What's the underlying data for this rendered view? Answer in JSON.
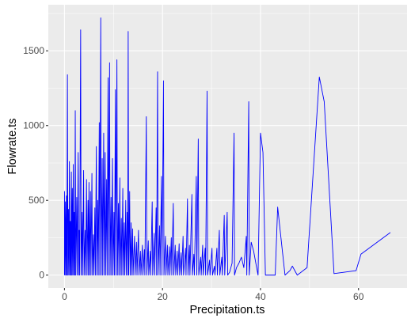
{
  "chart_data": {
    "type": "line",
    "xlabel": "Precipitation.ts",
    "ylabel": "Flowrate.ts",
    "xlim": [
      -3.3,
      69.9
    ],
    "ylim": [
      -86,
      1808
    ],
    "x_ticks": [
      0,
      20,
      40,
      60
    ],
    "y_ticks": [
      0,
      500,
      1000,
      1500
    ],
    "x_tick_labels": [
      "0",
      "20",
      "40",
      "60"
    ],
    "y_tick_labels": [
      "0",
      "500",
      "1000",
      "1500"
    ],
    "grid": true,
    "legend": "none",
    "colors": {
      "line": "#0000ff",
      "panel_background": "#ebebeb",
      "grid_major": "#ffffff",
      "tick_label": "#4d4d4d",
      "tick_mark": "#333333"
    },
    "series": [
      {
        "values": [
          [
            0.0,
            0
          ],
          [
            0.0,
            560
          ],
          [
            0.1,
            0
          ],
          [
            0.2,
            490
          ],
          [
            0.3,
            0
          ],
          [
            0.4,
            530
          ],
          [
            0.5,
            0
          ],
          [
            0.6,
            1340
          ],
          [
            0.7,
            0
          ],
          [
            0.8,
            440
          ],
          [
            0.9,
            0
          ],
          [
            1.0,
            760
          ],
          [
            1.1,
            0
          ],
          [
            1.2,
            360
          ],
          [
            1.3,
            0
          ],
          [
            1.4,
            690
          ],
          [
            1.5,
            0
          ],
          [
            1.6,
            580
          ],
          [
            1.7,
            0
          ],
          [
            1.8,
            740
          ],
          [
            1.9,
            0
          ],
          [
            2.0,
            420
          ],
          [
            2.1,
            0
          ],
          [
            2.2,
            1100
          ],
          [
            2.3,
            0
          ],
          [
            2.5,
            520
          ],
          [
            2.6,
            0
          ],
          [
            2.8,
            820
          ],
          [
            2.9,
            0
          ],
          [
            3.0,
            300
          ],
          [
            3.1,
            0
          ],
          [
            3.3,
            1640
          ],
          [
            3.4,
            0
          ],
          [
            3.6,
            420
          ],
          [
            3.7,
            0
          ],
          [
            3.9,
            700
          ],
          [
            4.0,
            0
          ],
          [
            4.2,
            300
          ],
          [
            4.3,
            0
          ],
          [
            4.5,
            640
          ],
          [
            4.6,
            0
          ],
          [
            4.8,
            500
          ],
          [
            4.9,
            0
          ],
          [
            5.0,
            620
          ],
          [
            5.1,
            0
          ],
          [
            5.3,
            560
          ],
          [
            5.4,
            0
          ],
          [
            5.6,
            680
          ],
          [
            5.7,
            0
          ],
          [
            5.9,
            270
          ],
          [
            6.0,
            0
          ],
          [
            6.2,
            450
          ],
          [
            6.3,
            0
          ],
          [
            6.5,
            860
          ],
          [
            6.6,
            0
          ],
          [
            6.8,
            500
          ],
          [
            6.9,
            0
          ],
          [
            7.1,
            1020
          ],
          [
            7.2,
            0
          ],
          [
            7.4,
            1720
          ],
          [
            7.5,
            0
          ],
          [
            7.7,
            780
          ],
          [
            7.8,
            0
          ],
          [
            8.0,
            950
          ],
          [
            8.1,
            0
          ],
          [
            8.3,
            820
          ],
          [
            8.4,
            0
          ],
          [
            8.6,
            640
          ],
          [
            8.7,
            0
          ],
          [
            8.9,
            1320
          ],
          [
            9.0,
            0
          ],
          [
            9.2,
            1420
          ],
          [
            9.3,
            0
          ],
          [
            9.5,
            520
          ],
          [
            9.6,
            0
          ],
          [
            9.8,
            780
          ],
          [
            9.9,
            0
          ],
          [
            10.1,
            420
          ],
          [
            10.2,
            0
          ],
          [
            10.4,
            1240
          ],
          [
            10.5,
            0
          ],
          [
            10.7,
            1440
          ],
          [
            10.8,
            0
          ],
          [
            11.0,
            480
          ],
          [
            11.1,
            0
          ],
          [
            11.3,
            650
          ],
          [
            11.4,
            0
          ],
          [
            11.6,
            380
          ],
          [
            11.7,
            0
          ],
          [
            11.9,
            580
          ],
          [
            12.0,
            0
          ],
          [
            12.2,
            350
          ],
          [
            12.3,
            0
          ],
          [
            12.5,
            500
          ],
          [
            12.6,
            0
          ],
          [
            12.8,
            420
          ],
          [
            12.9,
            0
          ],
          [
            13.0,
            1630
          ],
          [
            13.1,
            0
          ],
          [
            13.3,
            560
          ],
          [
            13.4,
            0
          ],
          [
            13.6,
            350
          ],
          [
            13.7,
            0
          ],
          [
            13.9,
            310
          ],
          [
            14.0,
            0
          ],
          [
            14.3,
            260
          ],
          [
            14.4,
            0
          ],
          [
            14.7,
            220
          ],
          [
            14.8,
            0
          ],
          [
            15.1,
            300
          ],
          [
            15.2,
            0
          ],
          [
            15.5,
            160
          ],
          [
            15.6,
            0
          ],
          [
            15.9,
            200
          ],
          [
            16.0,
            0
          ],
          [
            16.3,
            170
          ],
          [
            16.4,
            0
          ],
          [
            16.7,
            1060
          ],
          [
            16.8,
            0
          ],
          [
            17.1,
            230
          ],
          [
            17.2,
            0
          ],
          [
            17.5,
            160
          ],
          [
            17.6,
            0
          ],
          [
            17.9,
            490
          ],
          [
            18.0,
            0
          ],
          [
            18.3,
            280
          ],
          [
            18.4,
            0
          ],
          [
            18.7,
            450
          ],
          [
            18.8,
            0
          ],
          [
            19.0,
            1360
          ],
          [
            19.1,
            0
          ],
          [
            19.4,
            330
          ],
          [
            19.5,
            0
          ],
          [
            19.8,
            660
          ],
          [
            19.9,
            0
          ],
          [
            20.2,
            1300
          ],
          [
            20.3,
            0
          ],
          [
            20.6,
            260
          ],
          [
            20.7,
            0
          ],
          [
            21.0,
            200
          ],
          [
            21.1,
            0
          ],
          [
            21.4,
            190
          ],
          [
            21.5,
            0
          ],
          [
            21.8,
            250
          ],
          [
            21.9,
            0
          ],
          [
            22.2,
            480
          ],
          [
            22.3,
            0
          ],
          [
            22.6,
            200
          ],
          [
            22.7,
            0
          ],
          [
            23.0,
            160
          ],
          [
            23.1,
            0
          ],
          [
            23.4,
            210
          ],
          [
            23.5,
            0
          ],
          [
            23.8,
            150
          ],
          [
            23.9,
            0
          ],
          [
            24.2,
            260
          ],
          [
            24.3,
            0
          ],
          [
            24.7,
            180
          ],
          [
            24.8,
            0
          ],
          [
            25.1,
            510
          ],
          [
            25.2,
            0
          ],
          [
            25.5,
            200
          ],
          [
            25.6,
            0
          ],
          [
            26.0,
            540
          ],
          [
            26.1,
            0
          ],
          [
            26.4,
            140
          ],
          [
            26.5,
            0
          ],
          [
            26.9,
            660
          ],
          [
            27.0,
            0
          ],
          [
            27.3,
            910
          ],
          [
            27.4,
            0
          ],
          [
            27.8,
            120
          ],
          [
            27.9,
            0
          ],
          [
            28.2,
            200
          ],
          [
            28.3,
            0
          ],
          [
            28.7,
            180
          ],
          [
            28.8,
            0
          ],
          [
            29.1,
            1230
          ],
          [
            29.2,
            0
          ],
          [
            29.6,
            100
          ],
          [
            29.7,
            0
          ],
          [
            30.1,
            180
          ],
          [
            30.2,
            0
          ],
          [
            30.6,
            60
          ],
          [
            30.7,
            0
          ],
          [
            31.1,
            180
          ],
          [
            31.2,
            0
          ],
          [
            31.6,
            300
          ],
          [
            31.7,
            0
          ],
          [
            32.1,
            120
          ],
          [
            32.2,
            0
          ],
          [
            32.6,
            400
          ],
          [
            32.7,
            0
          ],
          [
            33.2,
            420
          ],
          [
            33.3,
            0
          ],
          [
            33.7,
            20
          ],
          [
            34.2,
            80
          ],
          [
            34.6,
            950
          ],
          [
            34.7,
            0
          ],
          [
            35.1,
            50
          ],
          [
            35.6,
            80
          ],
          [
            36.1,
            120
          ],
          [
            36.6,
            50
          ],
          [
            37.1,
            260
          ],
          [
            37.2,
            0
          ],
          [
            37.6,
            1160
          ],
          [
            37.7,
            0
          ],
          [
            38.1,
            220
          ],
          [
            38.6,
            160
          ],
          [
            39.1,
            70
          ],
          [
            39.5,
            0
          ],
          [
            40.0,
            950
          ],
          [
            40.5,
            820
          ],
          [
            41.0,
            0
          ],
          [
            42.0,
            0
          ],
          [
            43.0,
            0
          ],
          [
            43.5,
            455
          ],
          [
            44.5,
            150
          ],
          [
            45.0,
            0
          ],
          [
            46.0,
            30
          ],
          [
            46.5,
            60
          ],
          [
            47.5,
            0
          ],
          [
            49.5,
            50
          ],
          [
            52.0,
            1325
          ],
          [
            53.0,
            1160
          ],
          [
            55.0,
            10
          ],
          [
            59.5,
            30
          ],
          [
            60.5,
            140
          ],
          [
            66.5,
            285
          ]
        ]
      }
    ]
  }
}
